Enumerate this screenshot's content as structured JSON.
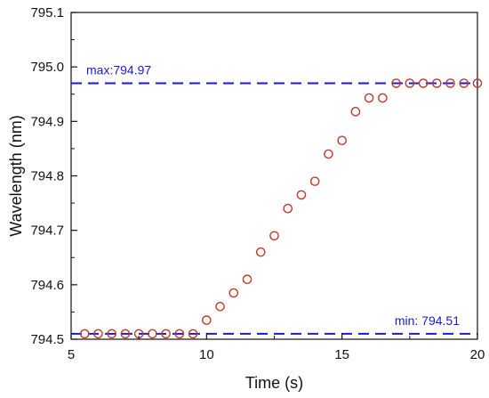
{
  "chart_data": {
    "type": "scatter",
    "xlabel": "Time (s)",
    "ylabel": "Wavelength (nm)",
    "xlim": [
      5,
      20
    ],
    "ylim": [
      794.5,
      795.1
    ],
    "xticks": [
      5,
      10,
      15,
      20
    ],
    "yticks": [
      794.5,
      794.6,
      794.7,
      794.8,
      794.9,
      795.0,
      795.1
    ],
    "ytick_labels": [
      "794.5",
      "794.6",
      "794.7",
      "794.8",
      "794.9",
      "795.0",
      "795.1"
    ],
    "grid": false,
    "series": [
      {
        "marker": "open-circle",
        "color": "#c0392b",
        "x": [
          5.5,
          6,
          6.5,
          7,
          7.5,
          8,
          8.5,
          9,
          9.5,
          10,
          10.5,
          11,
          11.5,
          12,
          12.5,
          13,
          13.5,
          14,
          14.5,
          15,
          15.5,
          16,
          16.5,
          17,
          17.5,
          18,
          18.5,
          19,
          19.5,
          20
        ],
        "y": [
          794.51,
          794.51,
          794.51,
          794.51,
          794.51,
          794.51,
          794.51,
          794.51,
          794.51,
          794.535,
          794.56,
          794.585,
          794.61,
          794.66,
          794.69,
          794.74,
          794.765,
          794.79,
          794.84,
          794.865,
          794.918,
          794.943,
          794.943,
          794.97,
          794.97,
          794.97,
          794.97,
          794.97,
          794.97,
          794.97
        ]
      }
    ],
    "reference_lines": [
      {
        "y": 794.97,
        "label": "max:794.97",
        "color": "#1a1acc",
        "style": "dashed"
      },
      {
        "y": 794.51,
        "label": "min: 794.51",
        "color": "#1a1acc",
        "style": "dashed"
      }
    ]
  }
}
